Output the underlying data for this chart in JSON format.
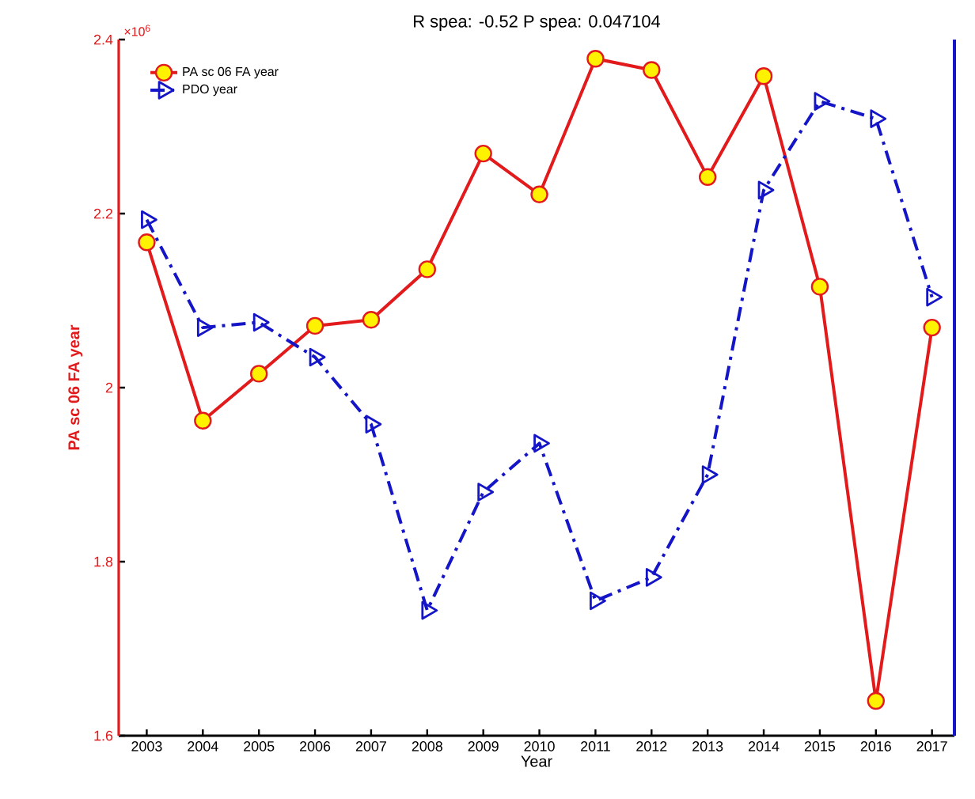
{
  "chart_data": {
    "type": "line",
    "title": "R spea: -0.52 P spea: 0.047104",
    "xlabel": "Year",
    "ylabel": "PA sc 06 FA year",
    "annotations": [
      "×10$^{6}$"
    ],
    "x": [
      2003,
      2004,
      2005,
      2006,
      2007,
      2008,
      2009,
      2010,
      2011,
      2012,
      2013,
      2014,
      2015,
      2016,
      2017
    ],
    "series": [
      {
        "name": "PA sc 06 FA year",
        "color": "#e31a1c",
        "marker": "circle",
        "line_style": "solid",
        "values": [
          2.167,
          1.962,
          2.016,
          2.071,
          2.078,
          2.136,
          2.269,
          2.222,
          2.378,
          2.365,
          2.242,
          2.358,
          2.116,
          1.64,
          2.069
        ]
      },
      {
        "name": "PDO year",
        "color": "#1515c8",
        "marker": "triangle",
        "line_style": "dashed",
        "values": [
          2.193,
          2.069,
          2.075,
          2.035,
          1.958,
          1.744,
          1.88,
          1.936,
          1.755,
          1.782,
          1.9,
          2.227,
          2.329,
          2.309,
          2.104
        ]
      }
    ],
    "xlim": [
      2002.5,
      2017.4
    ],
    "ylim": [
      1.6,
      2.4
    ],
    "xticks": [
      2003,
      2004,
      2005,
      2006,
      2007,
      2008,
      2009,
      2010,
      2011,
      2012,
      2013,
      2014,
      2015,
      2016,
      2017
    ],
    "yticks": [
      1.6,
      1.8,
      2,
      2.2,
      2.4
    ],
    "grid": false,
    "legend": "top left"
  }
}
